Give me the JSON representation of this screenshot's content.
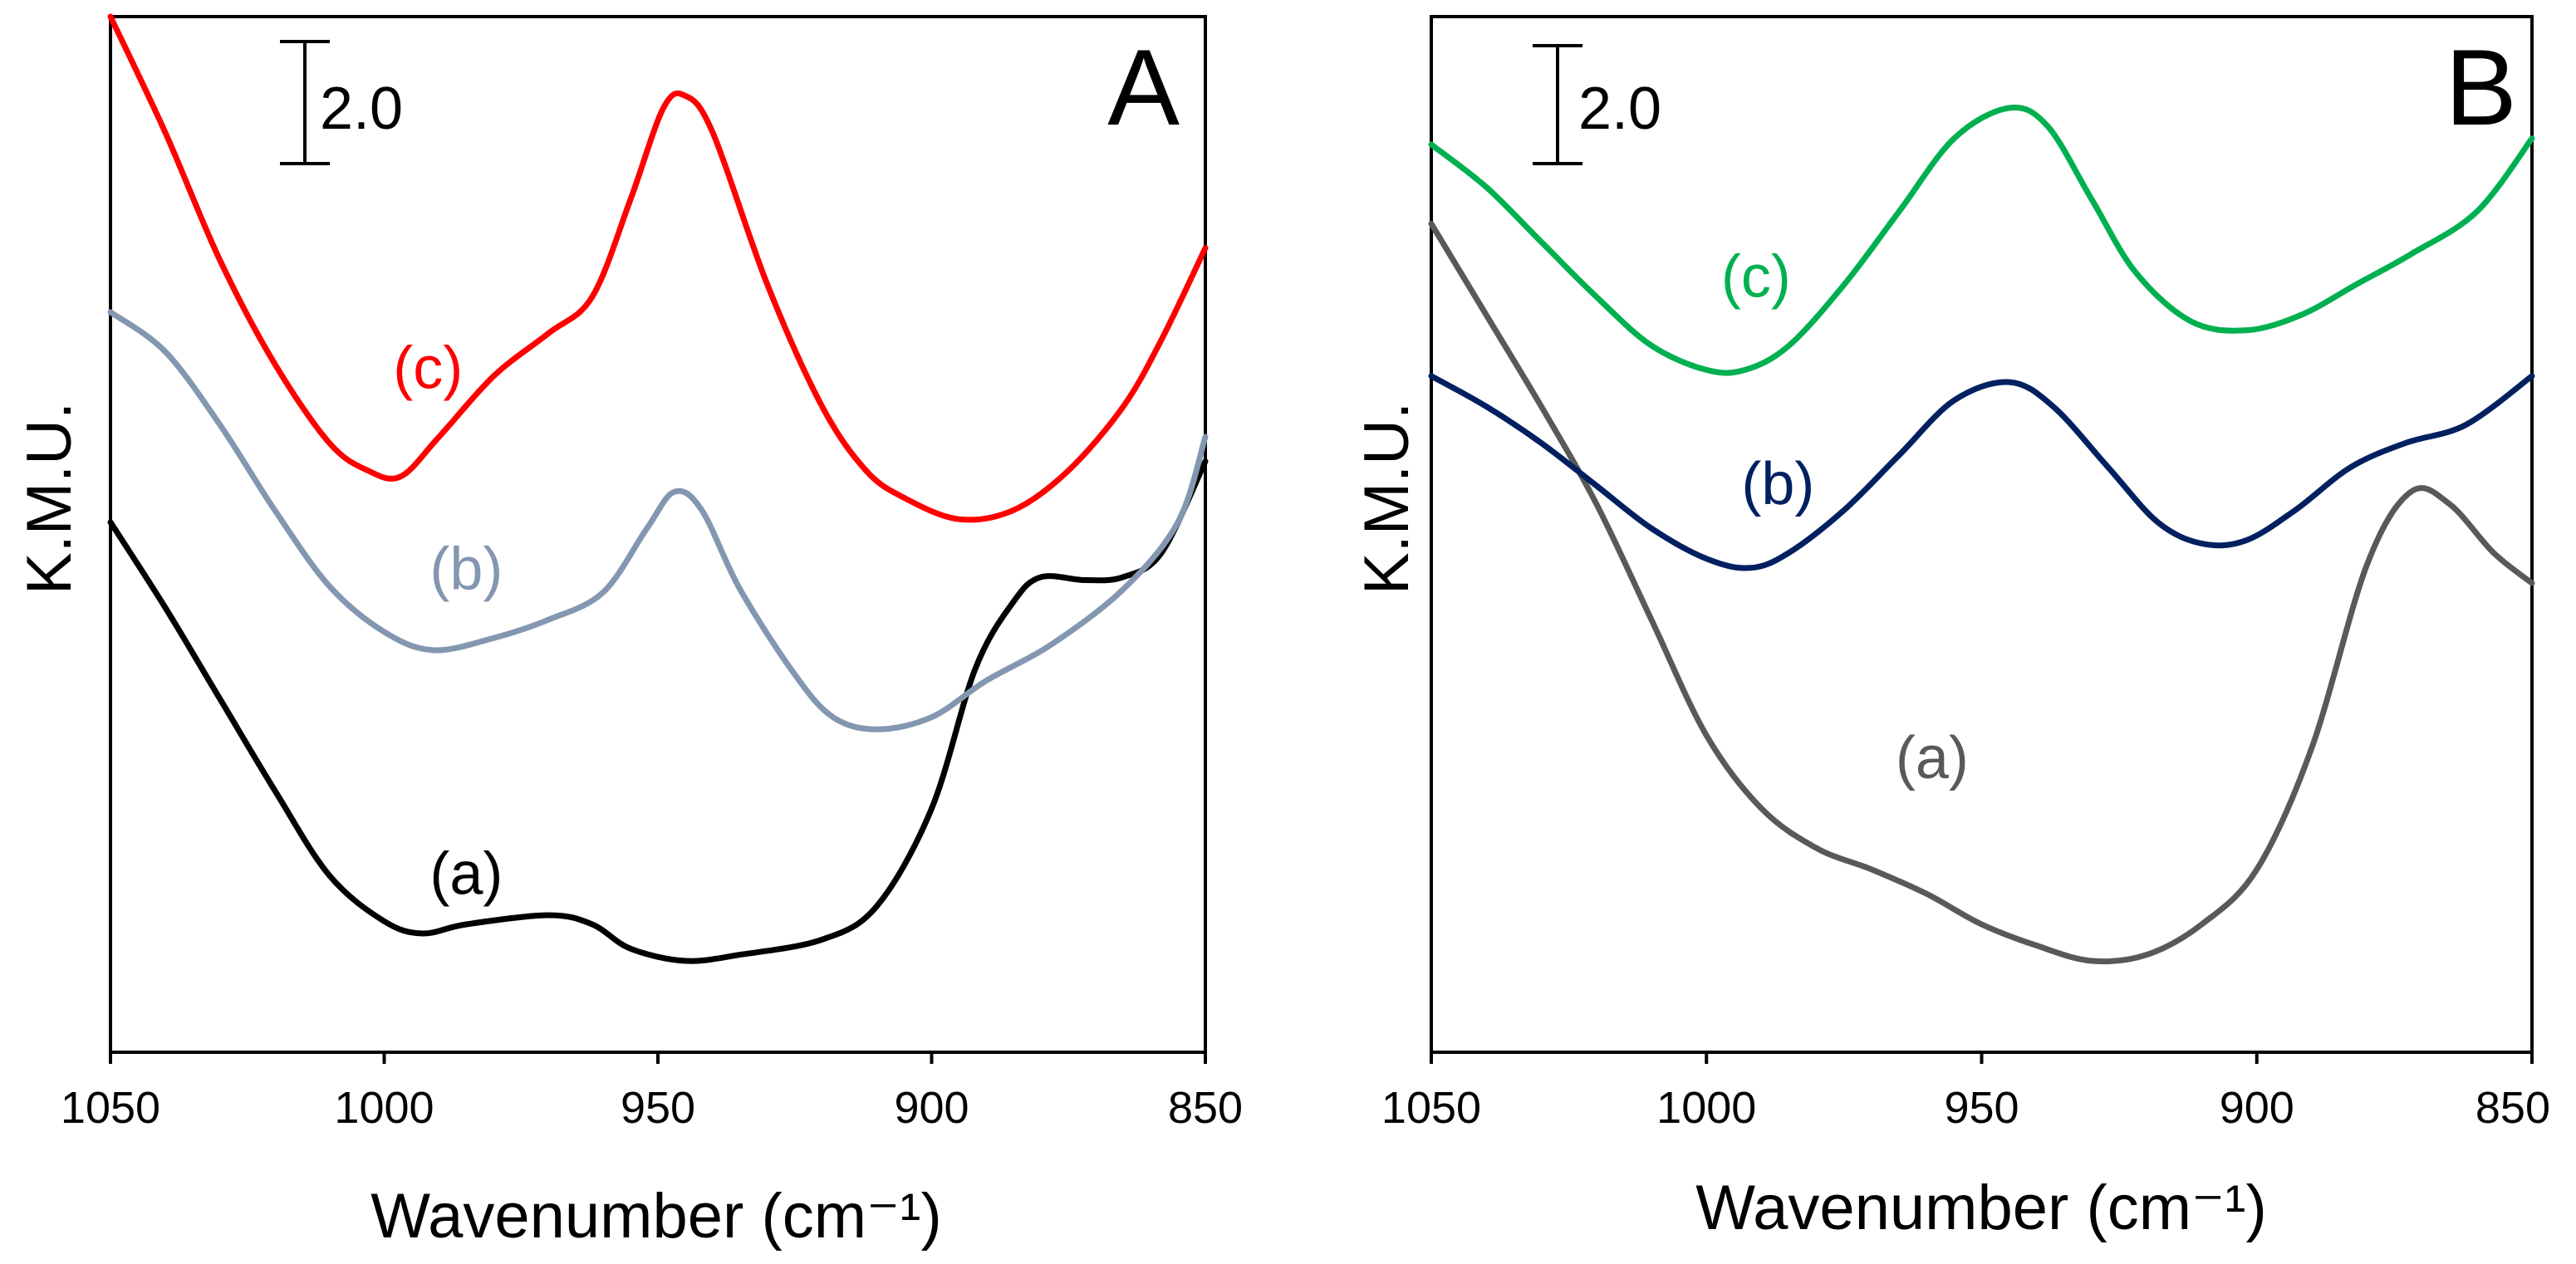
{
  "chart_data": [
    {
      "panel": "A",
      "type": "line",
      "title": "",
      "panel_label": "A",
      "xlabel": "Wavenumber (cm⁻¹)",
      "ylabel": "K.M.U.",
      "xlim": [
        1050,
        850
      ],
      "ylim": [
        0,
        17
      ],
      "x_ticks": [
        "1050",
        "1000",
        "950",
        "900",
        "850"
      ],
      "x_tick_values": [
        1050,
        1000,
        950,
        900,
        850
      ],
      "scale_bar": {
        "label": "2.0",
        "value": 2.0
      },
      "series": [
        {
          "name": "(a)",
          "color": "#000000",
          "points": [
            [
              1050,
              8.7
            ],
            [
              1040,
              7.3
            ],
            [
              1030,
              5.8
            ],
            [
              1020,
              4.3
            ],
            [
              1010,
              2.9
            ],
            [
              1000,
              2.15
            ],
            [
              993,
              1.95
            ],
            [
              985,
              2.1
            ],
            [
              970,
              2.25
            ],
            [
              962,
              2.1
            ],
            [
              955,
              1.7
            ],
            [
              945,
              1.5
            ],
            [
              935,
              1.6
            ],
            [
              920,
              1.85
            ],
            [
              910,
              2.4
            ],
            [
              900,
              4.0
            ],
            [
              892,
              6.3
            ],
            [
              885,
              7.4
            ],
            [
              880,
              7.8
            ],
            [
              872,
              7.75
            ],
            [
              865,
              7.8
            ],
            [
              858,
              8.2
            ],
            [
              850,
              9.7
            ]
          ]
        },
        {
          "name": "(b)",
          "color": "#8497B0",
          "points": [
            [
              1050,
              12.15
            ],
            [
              1040,
              11.5
            ],
            [
              1030,
              10.3
            ],
            [
              1020,
              8.9
            ],
            [
              1010,
              7.65
            ],
            [
              1000,
              6.9
            ],
            [
              991,
              6.6
            ],
            [
              980,
              6.8
            ],
            [
              970,
              7.1
            ],
            [
              960,
              7.55
            ],
            [
              952,
              8.6
            ],
            [
              947,
              9.2
            ],
            [
              942,
              8.9
            ],
            [
              935,
              7.6
            ],
            [
              925,
              6.2
            ],
            [
              918,
              5.5
            ],
            [
              910,
              5.3
            ],
            [
              900,
              5.5
            ],
            [
              890,
              6.1
            ],
            [
              878,
              6.7
            ],
            [
              865,
              7.6
            ],
            [
              855,
              8.7
            ],
            [
              850,
              10.1
            ]
          ]
        },
        {
          "name": "(c)",
          "color": "#FF0000",
          "points": [
            [
              1050,
              17.0
            ],
            [
              1040,
              15.1
            ],
            [
              1030,
              13.0
            ],
            [
              1020,
              11.3
            ],
            [
              1010,
              10.0
            ],
            [
              1003,
              9.55
            ],
            [
              997,
              9.45
            ],
            [
              990,
              10.1
            ],
            [
              980,
              11.1
            ],
            [
              970,
              11.8
            ],
            [
              962,
              12.4
            ],
            [
              955,
              14.0
            ],
            [
              949,
              15.5
            ],
            [
              945,
              15.7
            ],
            [
              940,
              15.1
            ],
            [
              930,
              12.6
            ],
            [
              920,
              10.6
            ],
            [
              912,
              9.55
            ],
            [
              905,
              9.1
            ],
            [
              895,
              8.75
            ],
            [
              885,
              8.9
            ],
            [
              875,
              9.55
            ],
            [
              865,
              10.6
            ],
            [
              858,
              11.7
            ],
            [
              850,
              13.2
            ]
          ]
        }
      ],
      "annotations": [
        {
          "text": "(c)",
          "x": 992,
          "y": 10.9
        },
        {
          "text": "(b)",
          "x": 985,
          "y": 7.6
        },
        {
          "text": "(a)",
          "x": 985,
          "y": 2.6
        }
      ]
    },
    {
      "panel": "B",
      "type": "line",
      "title": "",
      "panel_label": "B",
      "xlabel": "Wavenumber (cm⁻¹)",
      "ylabel": "K.M.U.",
      "xlim": [
        1050,
        850
      ],
      "ylim": [
        0,
        17
      ],
      "x_ticks": [
        "1050",
        "1000",
        "950",
        "900",
        "850"
      ],
      "x_tick_values": [
        1050,
        1000,
        950,
        900,
        850
      ],
      "scale_bar": {
        "label": "2.0",
        "value": 2.0
      },
      "series": [
        {
          "name": "(a)",
          "color": "#595959",
          "points": [
            [
              1050,
              13.6
            ],
            [
              1040,
              12.1
            ],
            [
              1030,
              10.6
            ],
            [
              1020,
              9.0
            ],
            [
              1010,
              7.1
            ],
            [
              1000,
              5.2
            ],
            [
              990,
              4.0
            ],
            [
              980,
              3.35
            ],
            [
              970,
              3.0
            ],
            [
              960,
              2.6
            ],
            [
              950,
              2.1
            ],
            [
              940,
              1.75
            ],
            [
              930,
              1.5
            ],
            [
              920,
              1.6
            ],
            [
              910,
              2.1
            ],
            [
              900,
              3.0
            ],
            [
              890,
              5.0
            ],
            [
              880,
              8.0
            ],
            [
              872,
              9.2
            ],
            [
              865,
              9.0
            ],
            [
              857,
              8.2
            ],
            [
              850,
              7.7
            ]
          ]
        },
        {
          "name": "(b)",
          "color": "#002060",
          "points": [
            [
              1050,
              11.1
            ],
            [
              1040,
              10.6
            ],
            [
              1030,
              10.0
            ],
            [
              1020,
              9.3
            ],
            [
              1010,
              8.6
            ],
            [
              1000,
              8.1
            ],
            [
              992,
              7.95
            ],
            [
              985,
              8.2
            ],
            [
              975,
              8.9
            ],
            [
              965,
              9.8
            ],
            [
              955,
              10.7
            ],
            [
              945,
              11.0
            ],
            [
              937,
              10.6
            ],
            [
              927,
              9.6
            ],
            [
              918,
              8.7
            ],
            [
              910,
              8.35
            ],
            [
              902,
              8.4
            ],
            [
              893,
              8.9
            ],
            [
              883,
              9.6
            ],
            [
              873,
              10.0
            ],
            [
              862,
              10.3
            ],
            [
              850,
              11.1
            ]
          ]
        },
        {
          "name": "(c)",
          "color": "#00B050",
          "points": [
            [
              1050,
              14.9
            ],
            [
              1040,
              14.2
            ],
            [
              1030,
              13.3
            ],
            [
              1020,
              12.4
            ],
            [
              1010,
              11.6
            ],
            [
              1000,
              11.2
            ],
            [
              993,
              11.2
            ],
            [
              985,
              11.6
            ],
            [
              975,
              12.6
            ],
            [
              965,
              13.8
            ],
            [
              955,
              15.0
            ],
            [
              945,
              15.5
            ],
            [
              938,
              15.2
            ],
            [
              930,
              14.0
            ],
            [
              922,
              12.8
            ],
            [
              912,
              12.0
            ],
            [
              902,
              11.85
            ],
            [
              892,
              12.1
            ],
            [
              882,
              12.6
            ],
            [
              872,
              13.1
            ],
            [
              860,
              13.8
            ],
            [
              850,
              15.0
            ]
          ]
        }
      ],
      "annotations": [
        {
          "text": "(c)",
          "x": 991,
          "y": 12.4
        },
        {
          "text": "(b)",
          "x": 987,
          "y": 9.0
        },
        {
          "text": "(a)",
          "x": 959,
          "y": 4.5
        }
      ]
    }
  ]
}
